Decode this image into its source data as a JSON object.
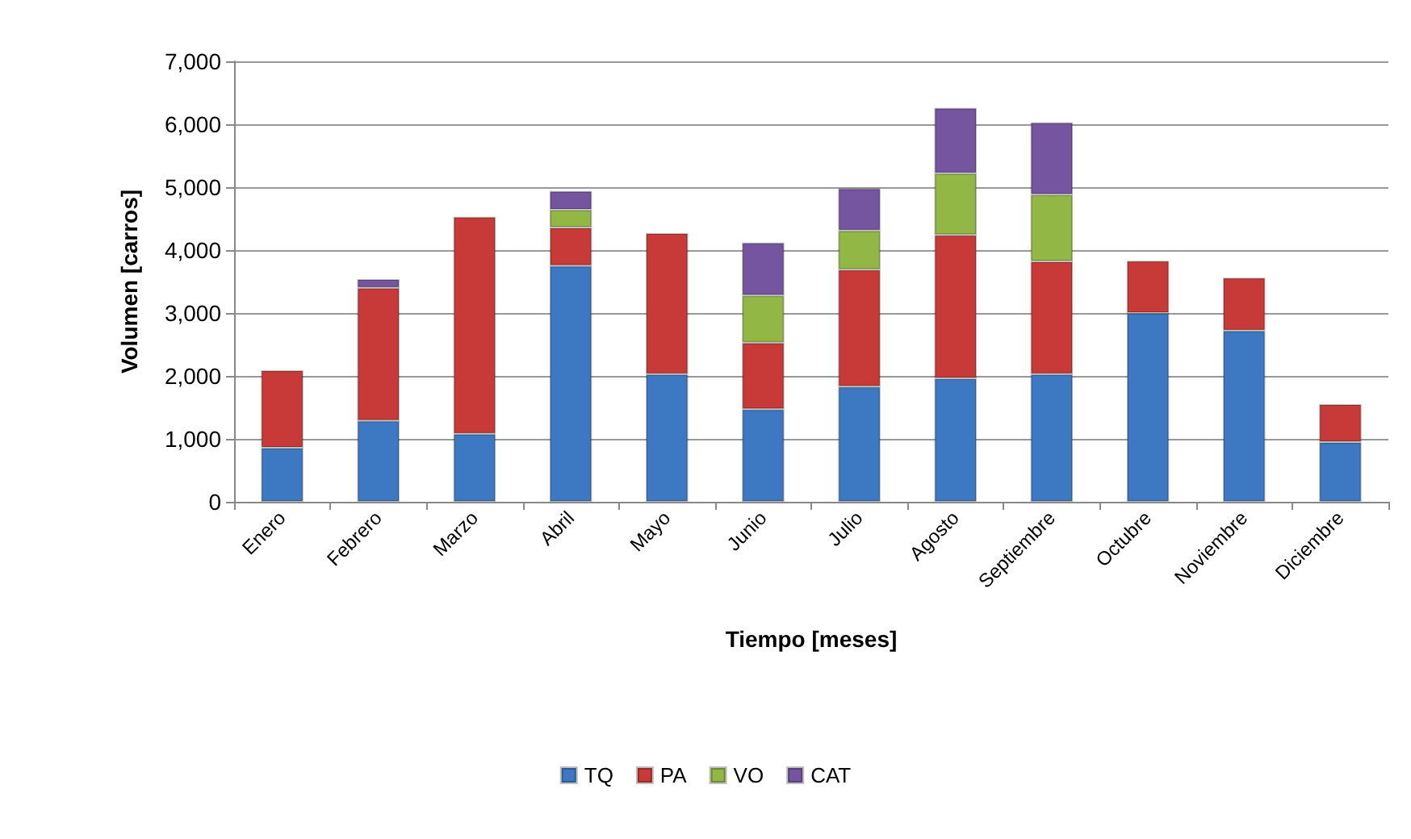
{
  "chart_data": {
    "type": "bar",
    "stacked": true,
    "xlabel": "Tiempo [meses]",
    "ylabel": "Volumen [carros]",
    "categories": [
      "Enero",
      "Febrero",
      "Marzo",
      "Abril",
      "Mayo",
      "Junio",
      "Julio",
      "Agosto",
      "Septiembre",
      "Octubre",
      "Noviembre",
      "Diciembre"
    ],
    "series": [
      {
        "name": "TQ",
        "color": "#3d78c2",
        "values": [
          860,
          1290,
          1080,
          3750,
          2030,
          1470,
          1830,
          1960,
          2030,
          3000,
          2720,
          950
        ]
      },
      {
        "name": "PA",
        "color": "#c73a37",
        "values": [
          1230,
          2110,
          3450,
          610,
          2240,
          1060,
          1860,
          2280,
          1790,
          830,
          840,
          600
        ]
      },
      {
        "name": "VO",
        "color": "#93b744",
        "values": [
          null,
          null,
          null,
          280,
          null,
          750,
          620,
          980,
          1060,
          null,
          null,
          null
        ]
      },
      {
        "name": "CAT",
        "color": "#7554a0",
        "values": [
          null,
          140,
          null,
          300,
          null,
          840,
          670,
          1040,
          1150,
          null,
          null,
          null
        ]
      }
    ],
    "ylim": [
      0,
      7000
    ],
    "yticks": [
      0,
      {
        "value": 1000,
        "label": "1,000"
      },
      {
        "value": 2000,
        "label": "2,000"
      },
      {
        "value": 3000,
        "label": "3,000"
      },
      {
        "value": 4000,
        "label": "4,000"
      },
      {
        "value": 5000,
        "label": "5,000"
      },
      {
        "value": 6000,
        "label": "6,000"
      },
      {
        "value": 7000,
        "label": "7,000"
      }
    ],
    "grid": "y",
    "legend": "bottom"
  }
}
